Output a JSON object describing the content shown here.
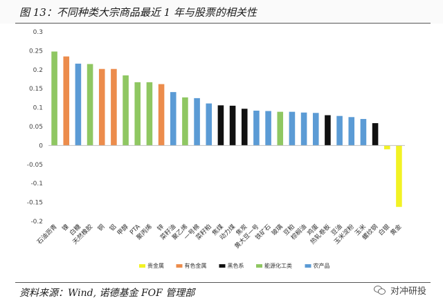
{
  "figure": {
    "title": "图 13：不同种类大宗商品最近 1 年与股票的相关性",
    "source": "资料来源：Wind, 诺德基金 FOF 管理部",
    "watermark": "对冲研投"
  },
  "colors": {
    "贵金属": "#f2f224",
    "有色金属": "#ec8c4c",
    "黑色系": "#111111",
    "能源化工类": "#8fc762",
    "农产品": "#5b9bd5"
  },
  "chart_data": {
    "type": "bar",
    "categories": [
      "石油沥青",
      "镍",
      "白糖",
      "天然橡胶",
      "铜",
      "铝",
      "甲醇",
      "PTA",
      "聚丙烯",
      "锌",
      "菜籽油",
      "聚乙烯",
      "一号棉",
      "菜籽粕",
      "焦煤",
      "动力煤",
      "焦炭",
      "黄大豆一号",
      "铁矿石",
      "玻璃",
      "豆粕",
      "棕榈油",
      "鸡蛋",
      "热轧卷板",
      "豆油",
      "玉米淀粉",
      "玉米",
      "螺纹钢",
      "白银",
      "黄金"
    ],
    "values": [
      0.248,
      0.235,
      0.216,
      0.215,
      0.202,
      0.202,
      0.185,
      0.167,
      0.167,
      0.162,
      0.141,
      0.127,
      0.125,
      0.111,
      0.106,
      0.105,
      0.097,
      0.092,
      0.091,
      0.089,
      0.089,
      0.087,
      0.086,
      0.08,
      0.078,
      0.075,
      0.07,
      0.059,
      -0.01,
      -0.162
    ],
    "groups": [
      "能源化工类",
      "有色金属",
      "农产品",
      "能源化工类",
      "有色金属",
      "有色金属",
      "能源化工类",
      "能源化工类",
      "能源化工类",
      "有色金属",
      "农产品",
      "能源化工类",
      "农产品",
      "农产品",
      "黑色系",
      "黑色系",
      "黑色系",
      "农产品",
      "农产品",
      "能源化工类",
      "农产品",
      "农产品",
      "农产品",
      "黑色系",
      "农产品",
      "农产品",
      "农产品",
      "黑色系",
      "贵金属",
      "贵金属"
    ],
    "ylim": [
      -0.2,
      0.3
    ],
    "yticks": [
      0.3,
      0.25,
      0.2,
      0.15,
      0.1,
      0.05,
      0,
      -0.05,
      -0.1,
      -0.15,
      -0.2
    ],
    "grid": false,
    "legend": {
      "position": "bottom",
      "entries": [
        "贵金属",
        "有色金属",
        "黑色系",
        "能源化工类",
        "农产品"
      ]
    }
  }
}
